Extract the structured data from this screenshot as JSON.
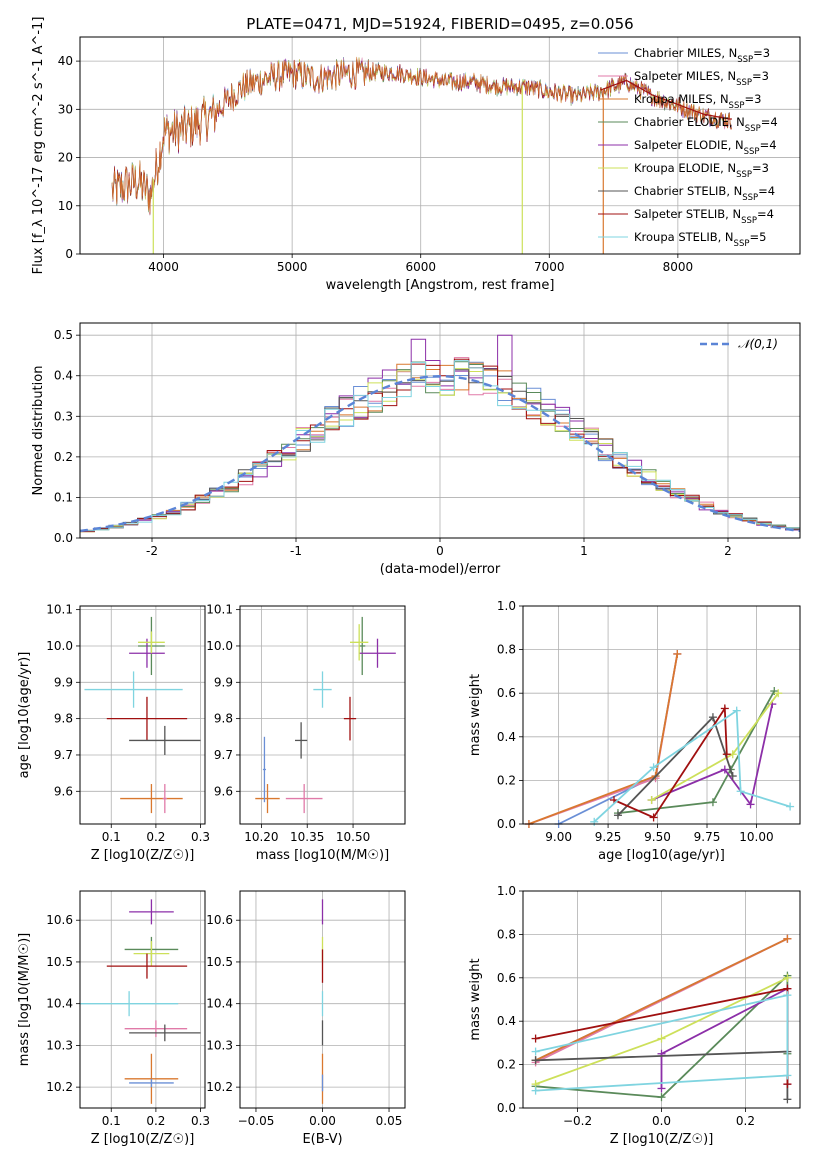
{
  "suptitle": "PLATE=0471, MJD=51924, FIBERID=0495, z=0.056",
  "colors": [
    "#6a8fd6",
    "#d9782f",
    "#d9782f",
    "#5a8a5a",
    "#8c2fa8",
    "#cde05a",
    "#555555",
    "#a01010",
    "#7fd4e0"
  ],
  "chart_data": [
    {
      "id": "spectrum",
      "type": "line",
      "xlabel": "wavelength [Angstrom, rest frame]",
      "ylabel": "Flux [f_λ 10^-17 erg cm^-2 s^-1 A^-1]",
      "xlim": [
        3350,
        8950
      ],
      "ylim": [
        0,
        45
      ],
      "xticks": [
        4000,
        5000,
        6000,
        7000,
        8000
      ],
      "yticks": [
        0,
        10,
        20,
        30,
        40
      ],
      "legend_position": "upper right",
      "series": [
        {
          "name": "Chabrier MILES, N_SSP=3",
          "color": "#6a8fd6"
        },
        {
          "name": "Salpeter MILES, N_SSP=3",
          "color": "#e07aa8"
        },
        {
          "name": "Kroupa MILES, N_SSP=3",
          "color": "#d9782f"
        },
        {
          "name": "Chabrier ELODIE, N_SSP=4",
          "color": "#5a8a5a"
        },
        {
          "name": "Salpeter ELODIE, N_SSP=4",
          "color": "#8c2fa8"
        },
        {
          "name": "Kroupa ELODIE, N_SSP=3",
          "color": "#cde05a"
        },
        {
          "name": "Chabrier STELIB, N_SSP=4",
          "color": "#555555"
        },
        {
          "name": "Salpeter STELIB, N_SSP=4",
          "color": "#a01010"
        },
        {
          "name": "Kroupa STELIB, N_SSP=5",
          "color": "#7fd4e0"
        }
      ],
      "envelope": {
        "x": [
          3600,
          3800,
          3900,
          4000,
          4200,
          4400,
          4600,
          4800,
          5000,
          5200,
          5400,
          5600,
          5800,
          6000,
          6200,
          6400,
          6600,
          6800,
          7000,
          7200,
          7400,
          7600,
          7800,
          8000,
          8200,
          8400
        ],
        "y": [
          14,
          16,
          13,
          26,
          27,
          30,
          35,
          37,
          38,
          37,
          38,
          38,
          38,
          37,
          36,
          36,
          35,
          35,
          34,
          33,
          34,
          36,
          33,
          31,
          29,
          28
        ]
      },
      "cutoffs": [
        {
          "x": 3920,
          "color": "#cde05a"
        },
        {
          "x": 6790,
          "color": "#cde05a"
        },
        {
          "x": 7420,
          "color": "#d9782f"
        }
      ]
    },
    {
      "id": "residuals",
      "type": "line",
      "xlabel": "(data-model)/error",
      "ylabel": "Normed distribution",
      "xlim": [
        -2.5,
        2.5
      ],
      "ylim": [
        0,
        0.53
      ],
      "xticks": [
        -2,
        -1,
        0,
        1,
        2
      ],
      "yticks": [
        0.0,
        0.1,
        0.2,
        0.3,
        0.4,
        0.5
      ],
      "legend": "𝒩(0,1)",
      "legend_position": "upper right",
      "bin_width": 0.1
    },
    {
      "id": "age-Z",
      "type": "scatter",
      "xlabel": "Z [log10(Z/Z☉)]",
      "ylabel": "age [log10(age/yr)]",
      "xlim": [
        0.03,
        0.31
      ],
      "ylim": [
        9.51,
        10.11
      ],
      "xticks": [
        0.1,
        0.2,
        0.3
      ],
      "yticks": [
        9.6,
        9.7,
        9.8,
        9.9,
        10.0,
        10.1
      ],
      "points": [
        {
          "x": 0.19,
          "y": 10.0,
          "xerr": 0.03,
          "yerr": 0.08,
          "color": "#5a8a5a"
        },
        {
          "x": 0.18,
          "y": 9.98,
          "xerr": 0.04,
          "yerr": 0.04,
          "color": "#8c2fa8"
        },
        {
          "x": 0.19,
          "y": 10.01,
          "xerr": 0.03,
          "yerr": 0.03,
          "color": "#cde05a"
        },
        {
          "x": 0.15,
          "y": 9.88,
          "xerr": 0.11,
          "yerr": 0.05,
          "color": "#7fd4e0"
        },
        {
          "x": 0.18,
          "y": 9.8,
          "xerr": 0.09,
          "yerr": 0.06,
          "color": "#a01010"
        },
        {
          "x": 0.22,
          "y": 9.74,
          "xerr": 0.08,
          "yerr": 0.04,
          "color": "#555555"
        },
        {
          "x": 0.19,
          "y": 9.58,
          "xerr": 0.07,
          "yerr": 0.04,
          "color": "#d9782f"
        },
        {
          "x": 0.22,
          "y": 9.58,
          "xerr": 0.005,
          "yerr": 0.04,
          "color": "#e07aa8"
        }
      ]
    },
    {
      "id": "age-mass",
      "type": "scatter",
      "xlabel": "mass [log10(M/M☉)]",
      "xlim": [
        10.13,
        10.67
      ],
      "ylim": [
        9.51,
        10.11
      ],
      "xticks": [
        10.2,
        10.35,
        10.5
      ],
      "xticklabels": [
        "10.20",
        "10.35",
        "10.50"
      ],
      "yticks": [
        9.6,
        9.7,
        9.8,
        9.9,
        10.0,
        10.1
      ],
      "points": [
        {
          "x": 10.53,
          "y": 10.0,
          "xerr": 0.01,
          "yerr": 0.08,
          "color": "#5a8a5a"
        },
        {
          "x": 10.58,
          "y": 9.98,
          "xerr": 0.06,
          "yerr": 0.04,
          "color": "#8c2fa8"
        },
        {
          "x": 10.52,
          "y": 10.01,
          "xerr": 0.03,
          "yerr": 0.05,
          "color": "#cde05a"
        },
        {
          "x": 10.4,
          "y": 9.88,
          "xerr": 0.03,
          "yerr": 0.05,
          "color": "#7fd4e0"
        },
        {
          "x": 10.49,
          "y": 9.8,
          "xerr": 0.02,
          "yerr": 0.06,
          "color": "#a01010"
        },
        {
          "x": 10.33,
          "y": 9.74,
          "xerr": 0.02,
          "yerr": 0.05,
          "color": "#555555"
        },
        {
          "x": 10.22,
          "y": 9.58,
          "xerr": 0.04,
          "yerr": 0.04,
          "color": "#d9782f"
        },
        {
          "x": 10.34,
          "y": 9.58,
          "xerr": 0.06,
          "yerr": 0.04,
          "color": "#e07aa8"
        },
        {
          "x": 10.21,
          "y": 9.66,
          "xerr": 0.005,
          "yerr": 0.09,
          "color": "#6a8fd6"
        }
      ]
    },
    {
      "id": "weight-age",
      "type": "line",
      "xlabel": "age [log10(age/yr)]",
      "ylabel": "mass weight",
      "xlim": [
        8.82,
        10.22
      ],
      "ylim": [
        0,
        1.0
      ],
      "xticks": [
        9.0,
        9.25,
        9.5,
        9.75,
        10.0
      ],
      "xticklabels": [
        "9.00",
        "9.25",
        "9.50",
        "9.75",
        "10.00"
      ],
      "yticks": [
        0.0,
        0.2,
        0.4,
        0.6,
        0.8,
        1.0
      ],
      "series": [
        {
          "color": "#6a8fd6",
          "x": [
            9.0,
            9.49,
            9.6
          ],
          "y": [
            0.0,
            0.22,
            0.78
          ]
        },
        {
          "color": "#e07aa8",
          "x": [
            8.85,
            9.49,
            9.6
          ],
          "y": [
            0.0,
            0.21,
            0.78
          ]
        },
        {
          "color": "#d9782f",
          "x": [
            8.85,
            9.49,
            9.6
          ],
          "y": [
            0.0,
            0.22,
            0.78
          ]
        },
        {
          "color": "#5a8a5a",
          "x": [
            9.3,
            9.78,
            9.87,
            10.09
          ],
          "y": [
            0.05,
            0.1,
            0.25,
            0.61
          ]
        },
        {
          "color": "#8c2fa8",
          "x": [
            9.47,
            9.84,
            9.97,
            10.08
          ],
          "y": [
            0.11,
            0.25,
            0.09,
            0.55
          ]
        },
        {
          "color": "#cde05a",
          "x": [
            9.47,
            9.88,
            10.11
          ],
          "y": [
            0.11,
            0.32,
            0.6
          ]
        },
        {
          "color": "#555555",
          "x": [
            9.3,
            9.78,
            9.88
          ],
          "y": [
            0.04,
            0.49,
            0.22
          ]
        },
        {
          "color": "#a01010",
          "x": [
            9.28,
            9.48,
            9.84,
            9.85
          ],
          "y": [
            0.11,
            0.03,
            0.53,
            0.32
          ]
        },
        {
          "color": "#7fd4e0",
          "x": [
            9.18,
            9.48,
            9.9,
            9.92,
            10.17
          ],
          "y": [
            0.01,
            0.26,
            0.52,
            0.15,
            0.08
          ]
        }
      ]
    },
    {
      "id": "mass-Z",
      "type": "scatter",
      "xlabel": "Z [log10(Z/Z☉)]",
      "ylabel": "mass [log10(M/M☉)]",
      "xlim": [
        0.03,
        0.31
      ],
      "ylim": [
        10.15,
        10.67
      ],
      "xticks": [
        0.1,
        0.2,
        0.3
      ],
      "yticks": [
        10.2,
        10.3,
        10.4,
        10.5,
        10.6
      ],
      "points": [
        {
          "x": 0.19,
          "y": 10.62,
          "xerr": 0.05,
          "yerr": 0.03,
          "color": "#8c2fa8"
        },
        {
          "x": 0.19,
          "y": 10.53,
          "xerr": 0.06,
          "yerr": 0.03,
          "color": "#5a8a5a"
        },
        {
          "x": 0.19,
          "y": 10.52,
          "xerr": 0.04,
          "yerr": 0.03,
          "color": "#cde05a"
        },
        {
          "x": 0.18,
          "y": 10.49,
          "xerr": 0.09,
          "yerr": 0.03,
          "color": "#a01010"
        },
        {
          "x": 0.14,
          "y": 10.4,
          "xerr": 0.11,
          "yerr": 0.03,
          "color": "#7fd4e0"
        },
        {
          "x": 0.2,
          "y": 10.34,
          "xerr": 0.07,
          "yerr": 0.02,
          "color": "#e07aa8"
        },
        {
          "x": 0.22,
          "y": 10.33,
          "xerr": 0.08,
          "yerr": 0.02,
          "color": "#555555"
        },
        {
          "x": 0.19,
          "y": 10.22,
          "xerr": 0.06,
          "yerr": 0.06,
          "color": "#d9782f"
        },
        {
          "x": 0.19,
          "y": 10.21,
          "xerr": 0.05,
          "yerr": 0.01,
          "color": "#6a8fd6"
        }
      ]
    },
    {
      "id": "mass-ebv",
      "type": "scatter",
      "xlabel": "E(B-V)",
      "xlim": [
        -0.062,
        0.062
      ],
      "ylim": [
        10.15,
        10.67
      ],
      "xticks": [
        -0.05,
        0.0,
        0.05
      ],
      "xticklabels": [
        "−0.05",
        "0.00",
        "0.05"
      ],
      "yticks": [
        10.2,
        10.3,
        10.4,
        10.5,
        10.6
      ],
      "points": [
        {
          "x": 0.0,
          "y": 10.62,
          "yerr": 0.03,
          "color": "#8c2fa8"
        },
        {
          "x": 0.0,
          "y": 10.53,
          "yerr": 0.03,
          "color": "#cde05a"
        },
        {
          "x": 0.0,
          "y": 10.49,
          "yerr": 0.04,
          "color": "#a01010"
        },
        {
          "x": 0.0,
          "y": 10.4,
          "yerr": 0.03,
          "color": "#7fd4e0"
        },
        {
          "x": 0.0,
          "y": 10.33,
          "yerr": 0.03,
          "color": "#555555"
        },
        {
          "x": 0.0,
          "y": 10.22,
          "yerr": 0.06,
          "color": "#d9782f"
        },
        {
          "x": 0.0,
          "y": 10.21,
          "yerr": 0.02,
          "color": "#6a8fd6"
        }
      ]
    },
    {
      "id": "weight-Z",
      "type": "line",
      "xlabel": "Z [log10(Z/Z☉)]",
      "ylabel": "mass weight",
      "xlim": [
        -0.33,
        0.33
      ],
      "ylim": [
        0,
        1.0
      ],
      "xticks": [
        -0.2,
        0.0,
        0.2
      ],
      "xticklabels": [
        "−0.2",
        "0.0",
        "0.2"
      ],
      "yticks": [
        0.0,
        0.2,
        0.4,
        0.6,
        0.8,
        1.0
      ],
      "series": [
        {
          "color": "#6a8fd6",
          "x": [
            -0.3,
            0.3
          ],
          "y": [
            0.22,
            0.78
          ]
        },
        {
          "color": "#e07aa8",
          "x": [
            -0.3,
            0.3
          ],
          "y": [
            0.21,
            0.78
          ]
        },
        {
          "color": "#d9782f",
          "x": [
            -0.3,
            0.3
          ],
          "y": [
            0.22,
            0.78
          ]
        },
        {
          "color": "#5a8a5a",
          "x": [
            -0.3,
            0.0,
            0.3,
            0.3
          ],
          "y": [
            0.1,
            0.05,
            0.61,
            0.25
          ]
        },
        {
          "color": "#8c2fa8",
          "x": [
            0.0,
            0.0,
            0.3,
            0.3
          ],
          "y": [
            0.09,
            0.25,
            0.55,
            0.11
          ]
        },
        {
          "color": "#cde05a",
          "x": [
            -0.3,
            0.0,
            0.3
          ],
          "y": [
            0.11,
            0.32,
            0.6
          ]
        },
        {
          "color": "#555555",
          "x": [
            -0.3,
            0.3,
            0.3
          ],
          "y": [
            0.22,
            0.26,
            0.04
          ]
        },
        {
          "color": "#a01010",
          "x": [
            -0.3,
            0.3,
            0.3
          ],
          "y": [
            0.32,
            0.55,
            0.11
          ]
        },
        {
          "color": "#7fd4e0",
          "x": [
            -0.3,
            0.3,
            0.3,
            -0.3
          ],
          "y": [
            0.08,
            0.15,
            0.52,
            0.26
          ]
        }
      ]
    }
  ]
}
